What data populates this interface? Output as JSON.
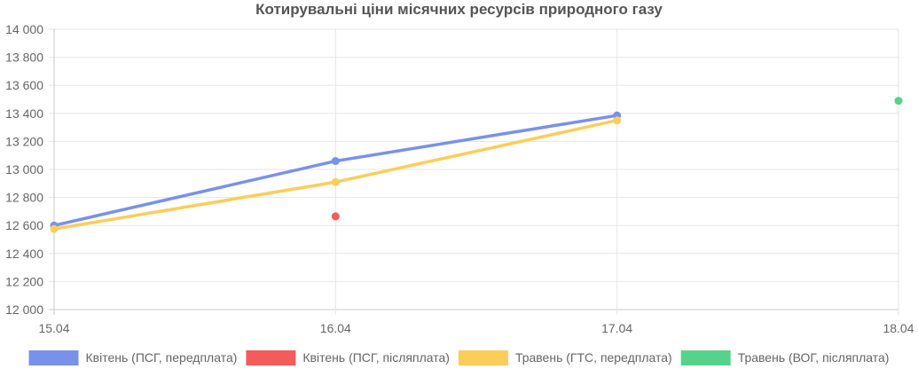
{
  "chart_data": {
    "type": "line",
    "title": "Котирувальні ціни місячних ресурсів природного газу",
    "x": [
      "15.04",
      "16.04",
      "17.04",
      "18.04"
    ],
    "ylim": [
      12000,
      14000
    ],
    "yticks": [
      12000,
      12200,
      12400,
      12600,
      12800,
      13000,
      13200,
      13400,
      13600,
      13800,
      14000
    ],
    "yticks_labels": [
      "12 000",
      "12 200",
      "12 400",
      "12 600",
      "12 800",
      "13 000",
      "13 200",
      "13 400",
      "13 600",
      "13 800",
      "14 000"
    ],
    "grid": true,
    "legend_position": "bottom",
    "series": [
      {
        "name": "Квітень (ПСГ, передплата)",
        "color": "#7891ea",
        "values": [
          12600,
          13060,
          13385,
          null
        ]
      },
      {
        "name": "Квітень (ПСГ, післяплата)",
        "color": "#f55b5b",
        "values": [
          null,
          12665,
          null,
          null
        ]
      },
      {
        "name": "Травень (ГТС, передплата)",
        "color": "#fdcd5a",
        "values": [
          12575,
          12910,
          13350,
          null
        ]
      },
      {
        "name": "Травень (ВОГ, післяплата)",
        "color": "#55d38b",
        "values": [
          null,
          null,
          null,
          13490
        ]
      }
    ]
  }
}
